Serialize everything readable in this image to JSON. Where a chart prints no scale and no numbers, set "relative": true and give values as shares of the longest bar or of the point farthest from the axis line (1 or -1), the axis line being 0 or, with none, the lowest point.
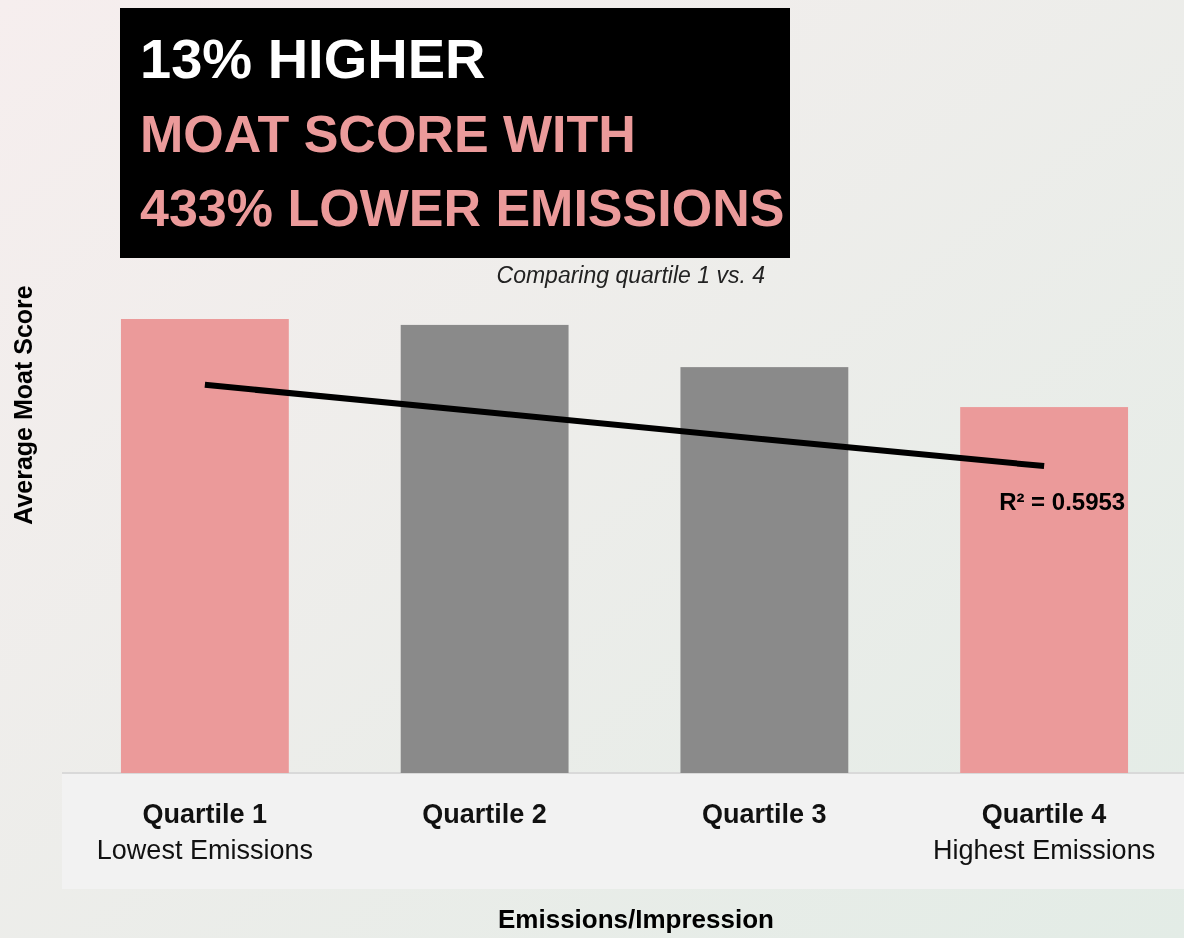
{
  "chart_data": {
    "type": "bar",
    "title": "13% HIGHER",
    "subtitle": "MOAT SCORE WITH\n433% LOWER EMISSIONS",
    "xlabel": "Emissions/Impression",
    "ylabel": "Average Moat Score",
    "relative": true,
    "categories": [
      "Quartile 1\nLowest Emissions",
      "Quartile 2",
      "Quartile 3",
      "Quartile 4\nHighest Emissions"
    ],
    "series": [
      {
        "values": [
          1,
          0.987,
          0.894,
          0.806
        ],
        "colors": [
          "#eb9a9a",
          "#8a8a8a",
          "#8a8a8a",
          "#eb9a9a"
        ]
      },
      {
        "type": "line",
        "color": "#000000",
        "values": [
          0.855,
          0.795,
          0.735,
          0.676
        ]
      }
    ],
    "annotations": [
      "Comparing quartile 1 vs. 4",
      {
        "text": "R² = 0.5953",
        "x": "Quartile 4\nHighest Emissions",
        "y": 0.676
      }
    ]
  }
}
